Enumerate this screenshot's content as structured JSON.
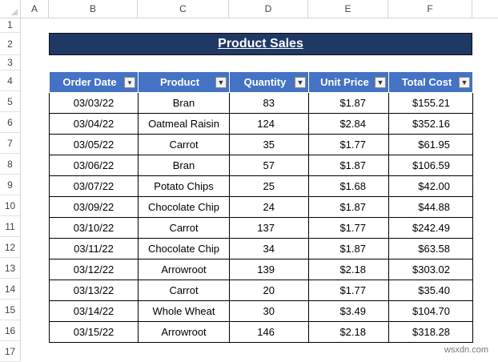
{
  "columns": [
    "A",
    "B",
    "C",
    "D",
    "E",
    "F"
  ],
  "rows": [
    "1",
    "2",
    "3",
    "4",
    "5",
    "6",
    "7",
    "8",
    "9",
    "10",
    "11",
    "12",
    "13",
    "14",
    "15",
    "16",
    "17"
  ],
  "title": "Product Sales",
  "headers": [
    "Order Date",
    "Product",
    "Quantity",
    "Unit Price",
    "Total Cost"
  ],
  "data": [
    [
      "03/03/22",
      "Bran",
      "83",
      "$1.87",
      "$155.21"
    ],
    [
      "03/04/22",
      "Oatmeal Raisin",
      "124",
      "$2.84",
      "$352.16"
    ],
    [
      "03/05/22",
      "Carrot",
      "35",
      "$1.77",
      "$61.95"
    ],
    [
      "03/06/22",
      "Bran",
      "57",
      "$1.87",
      "$106.59"
    ],
    [
      "03/07/22",
      "Potato Chips",
      "25",
      "$1.68",
      "$42.00"
    ],
    [
      "03/09/22",
      "Chocolate Chip",
      "24",
      "$1.87",
      "$44.88"
    ],
    [
      "03/10/22",
      "Carrot",
      "137",
      "$1.77",
      "$242.49"
    ],
    [
      "03/11/22",
      "Chocolate Chip",
      "34",
      "$1.87",
      "$63.58"
    ],
    [
      "03/12/22",
      "Arrowroot",
      "139",
      "$2.18",
      "$303.02"
    ],
    [
      "03/13/22",
      "Carrot",
      "20",
      "$1.77",
      "$35.40"
    ],
    [
      "03/14/22",
      "Whole Wheat",
      "30",
      "$3.49",
      "$104.70"
    ],
    [
      "03/15/22",
      "Arrowroot",
      "146",
      "$2.18",
      "$318.28"
    ]
  ],
  "watermark": "wsxdn.com",
  "colors": {
    "title_bg": "#1f3864",
    "header_bg": "#4472c4"
  },
  "icons": {
    "sort_filter": "sort-filter-icon",
    "filter": "filter-dropdown-icon"
  }
}
